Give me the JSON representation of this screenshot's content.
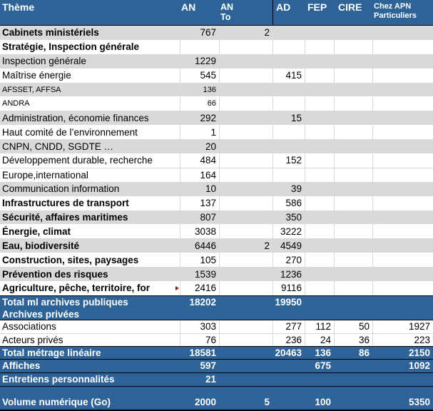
{
  "colors": {
    "header_blue": "#2E6398",
    "band_gray": "#D9D9D9",
    "gridline_gray": "#D9D9D9",
    "border_black": "#000000",
    "overflow_arrow_red": "#8B1C1C",
    "header_text": "#FFFFFF",
    "body_text": "#000000"
  },
  "table": {
    "columns": [
      {
        "key": "label",
        "lines": [
          "Thème"
        ]
      },
      {
        "key": "an",
        "lines": [
          "AN"
        ]
      },
      {
        "key": "anto",
        "lines": [
          "AN",
          "To"
        ]
      },
      {
        "key": "ad",
        "lines": [
          "AD"
        ]
      },
      {
        "key": "fep",
        "lines": [
          "FEP"
        ]
      },
      {
        "key": "cire",
        "lines": [
          "CIRE"
        ]
      },
      {
        "key": "apn",
        "lines": [
          "Chez APN",
          "Particuliers"
        ]
      }
    ],
    "rows": [
      {
        "label": "Cabinets ministériels",
        "an": "767",
        "anto": "2",
        "cls": "body gray bold"
      },
      {
        "label": "Stratégie, Inspection générale",
        "cls": "body white bold"
      },
      {
        "label": "Inspection générale",
        "an": "1229",
        "cls": "body gray"
      },
      {
        "label": "Maîtrise énergie",
        "an": "545",
        "ad": "415",
        "cls": "body white"
      },
      {
        "label": "AFSSET, AFFSA",
        "an": "136",
        "cls": "body gray small"
      },
      {
        "label": "ANDRA",
        "an": "66",
        "cls": "body white small"
      },
      {
        "label": "Administration, économie finances",
        "an": "292",
        "ad": "15",
        "cls": "body gray"
      },
      {
        "label": "Haut comité de l’environnement",
        "an": "1",
        "cls": "body white"
      },
      {
        "label": "CNPN, CNDD, SGDTE …",
        "an": "20",
        "cls": "body gray"
      },
      {
        "label": "Développement durable, recherche",
        "an": "484",
        "ad": "152",
        "cls": "body white"
      },
      {
        "label": "Europe,international",
        "an": "164",
        "cls": "body white lt"
      },
      {
        "label": "Communication information",
        "an": "10",
        "ad": "39",
        "cls": "body gray"
      },
      {
        "label": "Infrastructures de transport",
        "an": "137",
        "ad": "586",
        "cls": "body white bold"
      },
      {
        "label": "Sécurité, affaires maritimes",
        "an": "807",
        "ad": "350",
        "cls": "body gray bold"
      },
      {
        "label": "Énergie, climat",
        "an": "3038",
        "ad": "3222",
        "cls": "body white bold"
      },
      {
        "label": "Eau, biodiversité",
        "an": "6446",
        "anto": "2",
        "ad": "4549",
        "cls": "body gray bold"
      },
      {
        "label": "Construction, sites, paysages",
        "an": "105",
        "ad": "270",
        "cls": "body white bold"
      },
      {
        "label": "Prévention des risques",
        "an": "1539",
        "ad": "1236",
        "cls": "body gray bold"
      },
      {
        "label": "Agriculture, pêche, territoire, for",
        "an": "2416",
        "ad": "9116",
        "cls": "body white bold",
        "truncated": true
      },
      {
        "label": "Total ml archives publiques",
        "an": "18202",
        "ad": "19950",
        "cls": "blue h19 bt"
      },
      {
        "label": "Archives privées",
        "cls": "blue h16 bb"
      },
      {
        "label": "Associations",
        "an": "303",
        "ad": "277",
        "fep": "112",
        "cire": "50",
        "apn": "1927",
        "cls": "white h18"
      },
      {
        "label": "Acteurs privés",
        "an": "76",
        "ad": "236",
        "fep": "24",
        "cire": "36",
        "apn": "223",
        "cls": "white h18 lt"
      },
      {
        "label": "Total métrage linéaire",
        "an": "18581",
        "ad": "20463",
        "fep": "136",
        "cire": "86",
        "apn": "2150",
        "cls": "blue h19 bt bb"
      },
      {
        "label": "Affiches",
        "an": "597",
        "fep": "675",
        "apn": "1092",
        "cls": "blue h19 bb"
      },
      {
        "label": "Entretiens personnalités",
        "an": "21",
        "cls": "blue h19 bb"
      },
      {
        "label": "",
        "cls": "blue h11"
      },
      {
        "label": "Volume numérique (Go)",
        "an": "2000",
        "anto": "5",
        "fep": "100",
        "apn": "5350",
        "cls": "blue h23 bb2"
      }
    ]
  }
}
